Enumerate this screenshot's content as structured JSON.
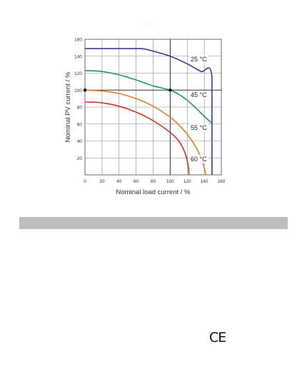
{
  "chart_data": {
    "type": "line",
    "title": "· ·",
    "xlabel": "Nominal load current / %",
    "ylabel": "Nominal PV current / %",
    "xlim": [
      0,
      160
    ],
    "ylim": [
      0,
      160
    ],
    "x_ticks": [
      "0",
      "20",
      "40",
      "60",
      "80",
      "100",
      "120",
      "140",
      "160"
    ],
    "y_ticks": [
      "20",
      "40",
      "60",
      "80",
      "100",
      "120",
      "140",
      "160"
    ],
    "grid": true,
    "legend": "none",
    "series": [
      {
        "name": "25 °C",
        "color": "#3d3b8e",
        "points": [
          [
            0,
            149
          ],
          [
            20,
            149
          ],
          [
            40,
            149
          ],
          [
            66,
            149
          ],
          [
            80,
            146
          ],
          [
            100,
            140
          ],
          [
            120,
            131
          ],
          [
            136,
            122
          ],
          [
            149,
            116
          ],
          [
            149,
            0
          ]
        ]
      },
      {
        "name": "45 °C",
        "color": "#1a9a5a",
        "points": [
          [
            0,
            123
          ],
          [
            20,
            122
          ],
          [
            40,
            118
          ],
          [
            60,
            112
          ],
          [
            80,
            105
          ],
          [
            100,
            100
          ],
          [
            110,
            95
          ],
          [
            120,
            88
          ],
          [
            130,
            79
          ],
          [
            140,
            69
          ],
          [
            149,
            61
          ]
        ]
      },
      {
        "name": "55 °C",
        "color": "#e67e22",
        "points": [
          [
            0,
            100
          ],
          [
            20,
            99
          ],
          [
            40,
            96
          ],
          [
            60,
            90
          ],
          [
            80,
            81
          ],
          [
            100,
            68
          ],
          [
            110,
            59
          ],
          [
            120,
            48
          ],
          [
            130,
            33
          ],
          [
            137,
            18
          ],
          [
            142,
            0
          ]
        ]
      },
      {
        "name": "60 °C",
        "color": "#d32f2f",
        "points": [
          [
            0,
            86
          ],
          [
            20,
            85
          ],
          [
            40,
            81
          ],
          [
            60,
            74
          ],
          [
            80,
            64
          ],
          [
            100,
            50
          ],
          [
            110,
            40
          ],
          [
            117,
            27
          ],
          [
            121,
            12
          ],
          [
            122,
            0
          ]
        ]
      }
    ],
    "markers": [
      {
        "x": 0,
        "y": 100
      },
      {
        "x": 100,
        "y": 100
      }
    ],
    "curve_labels": [
      {
        "text": "25 °C",
        "x": 124,
        "y": 134
      },
      {
        "text": "45 °C",
        "x": 124,
        "y": 92
      },
      {
        "text": "55 °C",
        "x": 124,
        "y": 53
      },
      {
        "text": "60 °C",
        "x": 124,
        "y": 16
      }
    ]
  },
  "footer": {
    "mark": "CE"
  }
}
